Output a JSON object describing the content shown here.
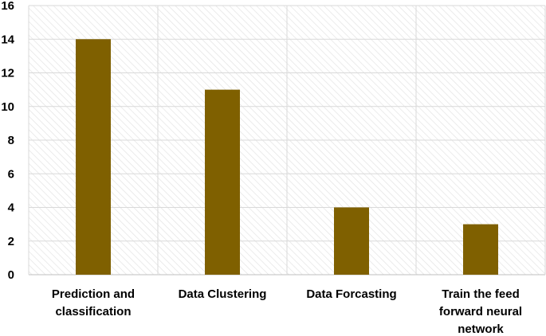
{
  "colors": {
    "bar": "#7f6000",
    "grid": "#d9d9d9",
    "hatch": "#e6e6e6",
    "axis": "#bfbfbf"
  },
  "chart_data": {
    "type": "bar",
    "title": "",
    "xlabel": "",
    "ylabel": "",
    "categories": [
      "Prediction and classification",
      "Data Clustering",
      "Data Forcasting",
      "Train the feed forward neural network"
    ],
    "category_lines": [
      [
        "Prediction and",
        "classification"
      ],
      [
        "Data Clustering"
      ],
      [
        "Data Forcasting"
      ],
      [
        "Train the feed",
        "forward neural",
        "network"
      ]
    ],
    "values": [
      14,
      11,
      4,
      3
    ],
    "ylim": [
      0,
      16
    ],
    "yticks": [
      "0",
      "2",
      "4",
      "6",
      "8",
      "10",
      "12",
      "14",
      "16"
    ],
    "grid": true,
    "legend": "none"
  }
}
